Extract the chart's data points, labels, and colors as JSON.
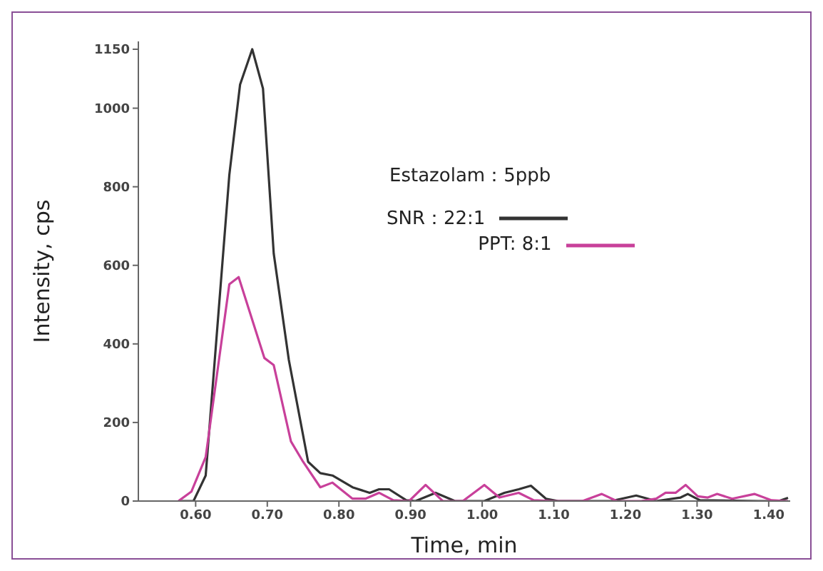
{
  "chart_data": {
    "type": "line",
    "xlabel": "Time, min",
    "ylabel": "Intensity, cps",
    "annotations": [
      "Estazolam：5ppb"
    ],
    "xlim": [
      0.52,
      1.43
    ],
    "xticks": [
      {
        "value": 0.6,
        "label": "0.60"
      },
      {
        "value": 0.7,
        "label": "0.70"
      },
      {
        "value": 0.8,
        "label": "0.80"
      },
      {
        "value": 0.9,
        "label": "0.90"
      },
      {
        "value": 1.0,
        "label": "1.00"
      },
      {
        "value": 1.1,
        "label": "1.10"
      },
      {
        "value": 1.2,
        "label": "1.20"
      },
      {
        "value": 1.3,
        "label": "1.30"
      },
      {
        "value": 1.4,
        "label": "1.40"
      }
    ],
    "ylim": [
      0,
      1170
    ],
    "yticks": [
      0,
      200,
      400,
      600,
      800,
      1000,
      1150
    ],
    "legend": "top",
    "marker": "none",
    "line_style": "solid",
    "series": [
      {
        "name": "SNR：22:1",
        "color": "#333333",
        "x": [
          0.58,
          0.597,
          0.614,
          0.647,
          0.662,
          0.679,
          0.694,
          0.709,
          0.73,
          0.757,
          0.774,
          0.791,
          0.819,
          0.843,
          0.856,
          0.87,
          0.894,
          0.907,
          0.935,
          0.962,
          1.003,
          1.031,
          1.051,
          1.068,
          1.089,
          1.106,
          1.18,
          1.215,
          1.243,
          1.277,
          1.287,
          1.304,
          1.386,
          1.414,
          1.427
        ],
        "values": [
          0,
          0,
          65,
          830,
          1060,
          1150,
          1050,
          630,
          360,
          100,
          71,
          65,
          35,
          21,
          30,
          30,
          2,
          0,
          21,
          0,
          0,
          21,
          30,
          39,
          6,
          0,
          0,
          14,
          0,
          9,
          18,
          2,
          0,
          0,
          8
        ]
      },
      {
        "name": "PPT: 8:1",
        "color": "#c8409a",
        "x": [
          0.576,
          0.594,
          0.614,
          0.647,
          0.66,
          0.696,
          0.709,
          0.733,
          0.75,
          0.774,
          0.791,
          0.819,
          0.837,
          0.856,
          0.876,
          0.898,
          0.921,
          0.945,
          0.973,
          1.003,
          1.024,
          1.051,
          1.072,
          1.099,
          1.14,
          1.167,
          1.188,
          1.222,
          1.243,
          1.256,
          1.27,
          1.284,
          1.301,
          1.315,
          1.328,
          1.349,
          1.38,
          1.404,
          1.427
        ],
        "values": [
          0,
          24,
          112,
          552,
          570,
          364,
          346,
          152,
          100,
          35,
          47,
          6,
          6,
          21,
          2,
          0,
          41,
          0,
          0,
          41,
          9,
          21,
          2,
          0,
          0,
          18,
          0,
          0,
          6,
          21,
          21,
          41,
          12,
          9,
          18,
          6,
          18,
          2,
          0
        ]
      }
    ]
  }
}
